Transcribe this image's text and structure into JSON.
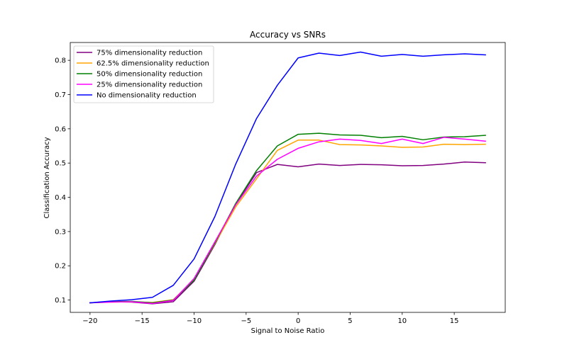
{
  "chart_data": {
    "type": "line",
    "title": "Accuracy vs SNRs",
    "xlabel": "Signal to Noise Ratio",
    "ylabel": "Classification Accuracy",
    "xlim": [
      -21.9,
      19.9
    ],
    "ylim": [
      0.064,
      0.852
    ],
    "xticks": [
      -20,
      -15,
      -10,
      -5,
      0,
      5,
      10,
      15
    ],
    "yticks": [
      0.1,
      0.2,
      0.3,
      0.4,
      0.5,
      0.6,
      0.7,
      0.8
    ],
    "grid": false,
    "legend_position": "top-left",
    "x": [
      -20,
      -18,
      -16,
      -14,
      -12,
      -10,
      -8,
      -6,
      -4,
      -2,
      0,
      2,
      4,
      6,
      8,
      10,
      12,
      14,
      16,
      18
    ],
    "series": [
      {
        "name": "75% dimensionality reduction",
        "color": "#800080",
        "values": [
          0.092,
          0.095,
          0.094,
          0.089,
          0.095,
          0.155,
          0.262,
          0.38,
          0.472,
          0.496,
          0.489,
          0.497,
          0.493,
          0.496,
          0.495,
          0.492,
          0.493,
          0.497,
          0.503,
          0.501
        ]
      },
      {
        "name": "62.5% dimensionality reduction",
        "color": "#ffa500",
        "values": [
          0.092,
          0.094,
          0.095,
          0.093,
          0.101,
          0.16,
          0.265,
          0.372,
          0.454,
          0.537,
          0.567,
          0.567,
          0.554,
          0.553,
          0.55,
          0.546,
          0.547,
          0.555,
          0.554,
          0.555
        ]
      },
      {
        "name": "50% dimensionality reduction",
        "color": "#008000",
        "values": [
          0.092,
          0.095,
          0.096,
          0.092,
          0.1,
          0.158,
          0.267,
          0.382,
          0.478,
          0.55,
          0.584,
          0.587,
          0.582,
          0.581,
          0.574,
          0.578,
          0.568,
          0.576,
          0.577,
          0.581
        ]
      },
      {
        "name": "25% dimensionality reduction",
        "color": "#ff00ff",
        "values": [
          0.092,
          0.094,
          0.095,
          0.09,
          0.099,
          0.163,
          0.27,
          0.378,
          0.462,
          0.511,
          0.543,
          0.562,
          0.57,
          0.566,
          0.557,
          0.57,
          0.557,
          0.575,
          0.57,
          0.564
        ]
      },
      {
        "name": "No dimensionality reduction",
        "color": "#0000ff",
        "values": [
          0.092,
          0.097,
          0.101,
          0.108,
          0.143,
          0.22,
          0.344,
          0.497,
          0.63,
          0.727,
          0.807,
          0.821,
          0.814,
          0.824,
          0.812,
          0.817,
          0.812,
          0.816,
          0.819,
          0.816
        ]
      }
    ]
  }
}
